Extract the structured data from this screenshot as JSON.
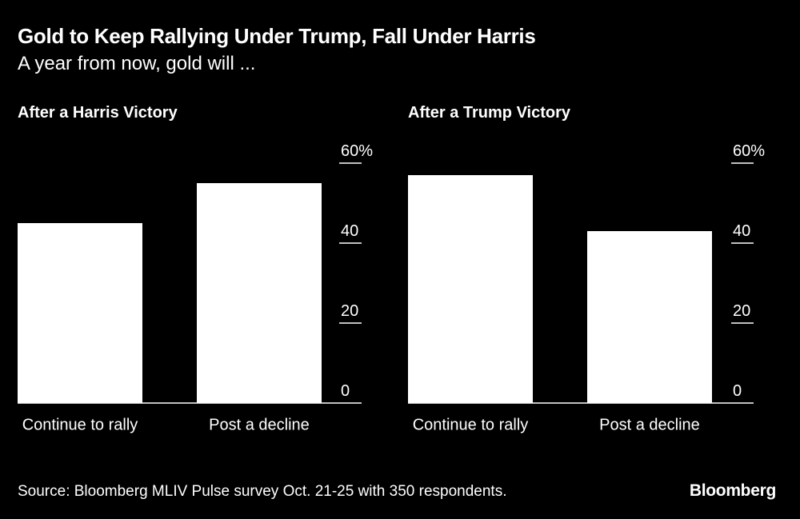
{
  "header": {
    "title": "Gold to Keep Rallying Under Trump, Fall Under Harris",
    "subtitle": "A year from now, gold will ..."
  },
  "footer": {
    "source": "Source: Bloomberg MLIV Pulse survey Oct. 21-25 with 350 respondents.",
    "brand": "Bloomberg"
  },
  "colors": {
    "background": "#000000",
    "bar": "#ffffff",
    "text": "#ffffff",
    "gridline": "#ffffff"
  },
  "chart_data": [
    {
      "type": "bar",
      "title": "After a Harris Victory",
      "categories": [
        "Continue to rally",
        "Post a decline"
      ],
      "values": [
        45,
        55
      ],
      "ylim": [
        0,
        60
      ],
      "yticks": [
        0,
        20,
        40,
        60
      ],
      "ytick_labels": [
        "0",
        "20",
        "40",
        "60%"
      ],
      "y_axis_position": "right",
      "grid": false,
      "legend": "none"
    },
    {
      "type": "bar",
      "title": "After a Trump Victory",
      "categories": [
        "Continue to rally",
        "Post a decline"
      ],
      "values": [
        57,
        43
      ],
      "ylim": [
        0,
        60
      ],
      "yticks": [
        0,
        20,
        40,
        60
      ],
      "ytick_labels": [
        "0",
        "20",
        "40",
        "60%"
      ],
      "y_axis_position": "right",
      "grid": false,
      "legend": "none"
    }
  ]
}
